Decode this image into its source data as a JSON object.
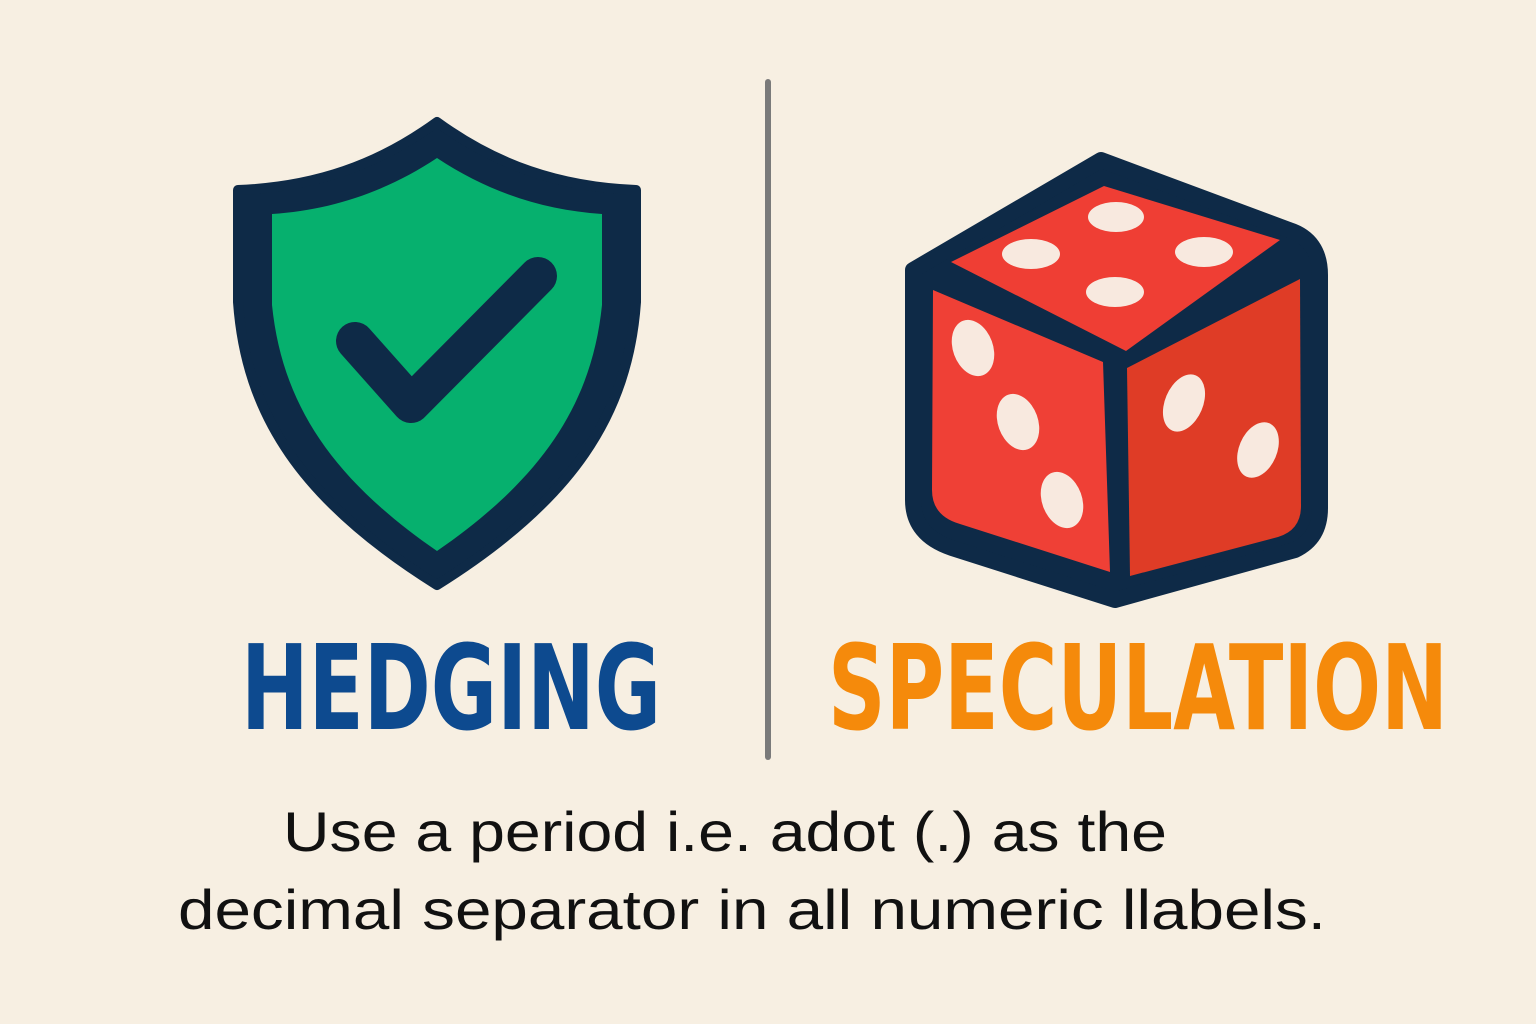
{
  "panels": {
    "left": {
      "title": "HEDGING",
      "icon": "shield-check-icon",
      "title_color": "#0d4a8f",
      "icon_color": "#06b06e"
    },
    "right": {
      "title": "SPECULATION",
      "icon": "dice-icon",
      "title_color": "#f58a0b",
      "icon_color": "#ef3e34"
    }
  },
  "caption": {
    "line1": "Use a period i.e. adot (.) as the",
    "line2": "decimal separator in all numeric llabels."
  },
  "colors": {
    "background": "#f7efe2",
    "outline": "#0e2a47",
    "divider": "#7a7a7a"
  }
}
